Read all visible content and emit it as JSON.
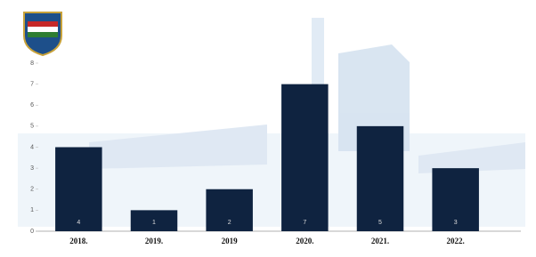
{
  "chart_data": {
    "type": "bar",
    "categories": [
      "2018.",
      "2019.",
      "2019",
      "2020.",
      "2021.",
      "2022."
    ],
    "values": [
      4,
      1,
      2,
      7,
      5,
      3
    ],
    "color": "#0f2340",
    "ylim": [
      0,
      8
    ],
    "yticks": [
      0,
      1,
      2,
      3,
      4,
      5,
      6,
      7,
      8
    ],
    "grid": false
  }
}
